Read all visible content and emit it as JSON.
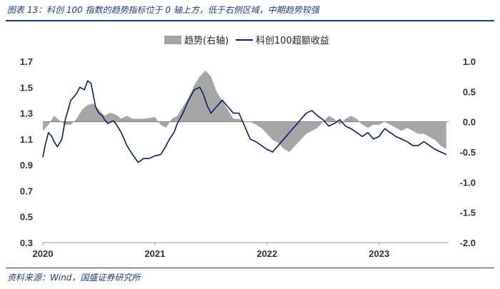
{
  "header": {
    "title": "图表 13：科创 100 指数的趋势指标位于 0 轴上方，低于右侧区域，中期趋势较强"
  },
  "footer": {
    "source": "资料来源：Wind，国盛证券研究所"
  },
  "colors": {
    "area": "#a6a6a6",
    "line": "#0d1f5c",
    "rule": "#1f3d7a"
  },
  "chart_data": {
    "type": "line+area",
    "title": "",
    "x_tick_labels": [
      "2020",
      "2021",
      "2022",
      "2023"
    ],
    "x_range": [
      2020.0,
      2023.62
    ],
    "left_axis": {
      "range": [
        0.3,
        1.7
      ],
      "ticks": [
        "1.7",
        "1.5",
        "1.3",
        "1.1",
        "0.9",
        "0.7",
        "0.5",
        "0.3"
      ]
    },
    "right_axis": {
      "range": [
        -2.0,
        1.0
      ],
      "ticks": [
        "1.0",
        "0.5",
        "0.0",
        "-0.5",
        "-1.0",
        "-1.5",
        "-2.0"
      ]
    },
    "legend": {
      "position": "top-center",
      "area_label": "趋势(右轴)",
      "line_label": "科创100超额收益"
    },
    "series": [
      {
        "name": "趋势(右轴)",
        "kind": "area",
        "axis": "right",
        "x": [
          2020.0,
          2020.05,
          2020.1,
          2020.15,
          2020.2,
          2020.25,
          2020.3,
          2020.35,
          2020.4,
          2020.45,
          2020.5,
          2020.55,
          2020.6,
          2020.65,
          2020.7,
          2020.75,
          2020.8,
          2020.9,
          2021.0,
          2021.05,
          2021.1,
          2021.15,
          2021.2,
          2021.25,
          2021.3,
          2021.35,
          2021.4,
          2021.45,
          2021.5,
          2021.55,
          2021.6,
          2021.65,
          2021.7,
          2021.75,
          2021.8,
          2021.85,
          2021.9,
          2021.95,
          2022.0,
          2022.05,
          2022.1,
          2022.15,
          2022.2,
          2022.25,
          2022.3,
          2022.35,
          2022.4,
          2022.45,
          2022.5,
          2022.55,
          2022.6,
          2022.65,
          2022.7,
          2022.75,
          2022.8,
          2022.85,
          2022.9,
          2022.95,
          2023.0,
          2023.05,
          2023.1,
          2023.15,
          2023.2,
          2023.25,
          2023.3,
          2023.35,
          2023.4,
          2023.45,
          2023.5,
          2023.55,
          2023.6
        ],
        "values": [
          -0.15,
          -0.05,
          0.1,
          0.02,
          -0.05,
          -0.05,
          0.05,
          0.2,
          0.28,
          0.3,
          0.2,
          0.1,
          0.15,
          0.12,
          0.05,
          0.1,
          0.05,
          0.05,
          0.08,
          -0.05,
          -0.1,
          0.05,
          0.1,
          0.25,
          0.4,
          0.6,
          0.75,
          0.85,
          0.75,
          0.5,
          0.35,
          0.2,
          0.05,
          0.05,
          0.0,
          0.0,
          -0.05,
          -0.1,
          -0.2,
          -0.3,
          -0.35,
          -0.45,
          -0.5,
          -0.4,
          -0.3,
          -0.2,
          -0.15,
          -0.1,
          0.0,
          0.1,
          0.05,
          -0.05,
          0.05,
          0.1,
          0.05,
          -0.05,
          -0.1,
          -0.05,
          -0.05,
          0.0,
          -0.05,
          -0.1,
          -0.15,
          -0.1,
          -0.15,
          -0.2,
          -0.2,
          -0.25,
          -0.3,
          -0.4,
          -0.45
        ]
      },
      {
        "name": "科创100超额收益",
        "kind": "line",
        "axis": "left",
        "x": [
          2020.0,
          2020.02,
          2020.05,
          2020.08,
          2020.1,
          2020.13,
          2020.17,
          2020.2,
          2020.25,
          2020.3,
          2020.33,
          2020.37,
          2020.4,
          2020.43,
          2020.47,
          2020.5,
          2020.53,
          2020.55,
          2020.58,
          2020.6,
          2020.63,
          2020.65,
          2020.7,
          2020.75,
          2020.8,
          2020.85,
          2020.9,
          2020.95,
          2021.0,
          2021.05,
          2021.08,
          2021.1,
          2021.13,
          2021.17,
          2021.2,
          2021.25,
          2021.3,
          2021.35,
          2021.4,
          2021.43,
          2021.47,
          2021.5,
          2021.55,
          2021.58,
          2021.6,
          2021.65,
          2021.7,
          2021.75,
          2021.8,
          2021.85,
          2021.9,
          2021.95,
          2022.0,
          2022.05,
          2022.1,
          2022.15,
          2022.2,
          2022.25,
          2022.3,
          2022.35,
          2022.4,
          2022.45,
          2022.5,
          2022.55,
          2022.6,
          2022.65,
          2022.7,
          2022.75,
          2022.8,
          2022.85,
          2022.9,
          2022.95,
          2023.0,
          2023.05,
          2023.1,
          2023.15,
          2023.2,
          2023.25,
          2023.3,
          2023.35,
          2023.4,
          2023.45,
          2023.5,
          2023.55,
          2023.6
        ],
        "values": [
          0.96,
          1.05,
          1.15,
          1.12,
          1.08,
          1.04,
          1.1,
          1.25,
          1.4,
          1.45,
          1.5,
          1.48,
          1.55,
          1.53,
          1.35,
          1.3,
          1.28,
          1.25,
          1.22,
          1.23,
          1.24,
          1.22,
          1.15,
          1.05,
          0.98,
          0.92,
          0.95,
          0.95,
          0.97,
          0.98,
          1.02,
          1.05,
          1.1,
          1.15,
          1.22,
          1.3,
          1.4,
          1.48,
          1.5,
          1.45,
          1.35,
          1.3,
          1.35,
          1.38,
          1.4,
          1.35,
          1.3,
          1.3,
          1.2,
          1.1,
          1.08,
          1.05,
          1.02,
          1.0,
          1.05,
          1.1,
          1.15,
          1.2,
          1.25,
          1.3,
          1.32,
          1.28,
          1.25,
          1.2,
          1.22,
          1.25,
          1.2,
          1.18,
          1.15,
          1.12,
          1.15,
          1.1,
          1.12,
          1.18,
          1.15,
          1.12,
          1.1,
          1.08,
          1.05,
          1.05,
          1.08,
          1.05,
          1.02,
          1.0,
          0.98
        ]
      }
    ]
  }
}
